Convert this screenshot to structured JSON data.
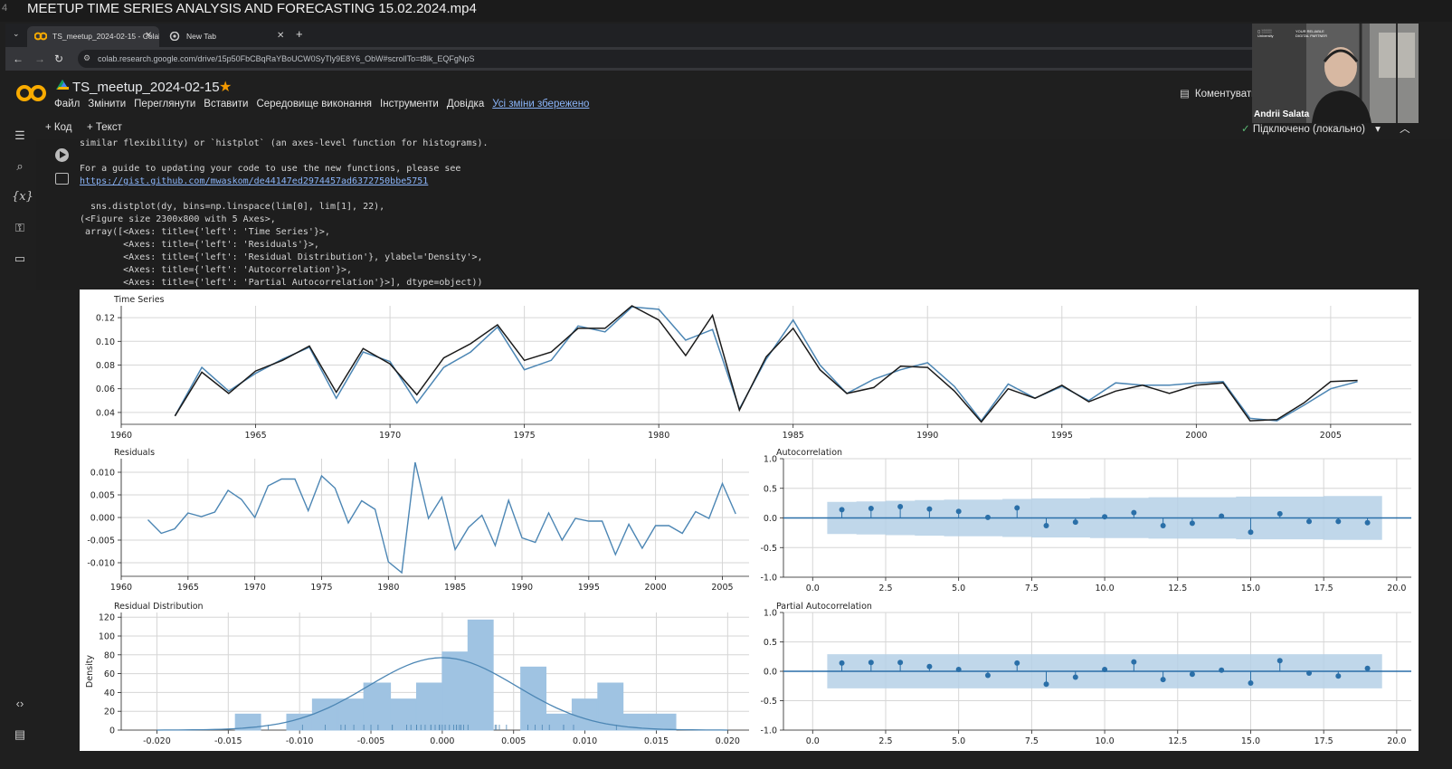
{
  "video": {
    "index": "4",
    "title": "MEETUP TIME SERIES ANALYSIS AND FORECASTING 15.02.2024.mp4"
  },
  "browser": {
    "tabs": [
      {
        "label": "TS_meetup_2024-02-15 - Colab"
      },
      {
        "label": "New Tab"
      }
    ],
    "new_tab": "+",
    "url": "colab.research.google.com/drive/15p50FbCBqRaYBoUCW0SyTly9E8Y6_ObW#scrollTo=t8lk_EQFgNpS"
  },
  "colab": {
    "notebook_title": "TS_meetup_2024-02-15",
    "menu": [
      "Файл",
      "Змінити",
      "Переглянути",
      "Вставити",
      "Середовище виконання",
      "Інструменти",
      "Довідка"
    ],
    "saved_status": "Усі зміни збережено",
    "comment_label": "Коментувати",
    "add_code": "+ Код",
    "add_text": "+ Текст",
    "connection": "Підключено (локально)"
  },
  "output_lines": [
    "similar flexibility) or `histplot` (an axes-level function for histograms).",
    "",
    "For a guide to updating your code to use the new functions, please see",
    "https://gist.github.com/mwaskom/de44147ed2974457ad6372750bbe5751",
    "",
    "  sns.distplot(dy, bins=np.linspace(lim[0], lim[1], 22),",
    "(<Figure size 2300x800 with 5 Axes>,",
    " array([<Axes: title={'left': 'Time Series'}>,",
    "        <Axes: title={'left': 'Residuals'}>,",
    "        <Axes: title={'left': 'Residual Distribution'}, ylabel='Density'>,",
    "        <Axes: title={'left': 'Autocorrelation'}>,",
    "        <Axes: title={'left': 'Partial Autocorrelation'}>], dtype=object))"
  ],
  "webcam": {
    "name": "Andrii Salata"
  },
  "colors": {
    "series_blue": "#4c86b4",
    "series_black": "#1a1a1a",
    "band": "#b5d0e6"
  },
  "chart_data": [
    {
      "type": "line",
      "title": "Time Series",
      "xlim": [
        1960,
        2008
      ],
      "ylim": [
        0.03,
        0.13
      ],
      "xticks": [
        "1960",
        "1965",
        "1970",
        "1975",
        "1980",
        "1985",
        "1990",
        "1995",
        "2000",
        "2005"
      ],
      "yticks": [
        "0.04",
        "0.06",
        "0.08",
        "0.10",
        "0.12"
      ],
      "x": [
        1962,
        1963,
        1964,
        1965,
        1966,
        1967,
        1968,
        1969,
        1970,
        1971,
        1972,
        1973,
        1974,
        1975,
        1976,
        1977,
        1978,
        1979,
        1980,
        1981,
        1982,
        1983,
        1984,
        1985,
        1986,
        1987,
        1988,
        1989,
        1990,
        1991,
        1992,
        1993,
        1994,
        1995,
        1996,
        1997,
        1998,
        1999,
        2000,
        2001,
        2002,
        2003,
        2004,
        2005,
        2006
      ],
      "series": [
        {
          "values": [
            0.037,
            0.078,
            0.058,
            0.073,
            0.085,
            0.095,
            0.052,
            0.091,
            0.083,
            0.048,
            0.078,
            0.091,
            0.112,
            0.076,
            0.084,
            0.113,
            0.108,
            0.129,
            0.127,
            0.101,
            0.11,
            0.043,
            0.085,
            0.118,
            0.08,
            0.056,
            0.068,
            0.076,
            0.082,
            0.062,
            0.033,
            0.064,
            0.052,
            0.062,
            0.05,
            0.065,
            0.063,
            0.063,
            0.065,
            0.066,
            0.035,
            0.033,
            0.046,
            0.06,
            0.066
          ]
        },
        {
          "values": [
            0.037,
            0.074,
            0.056,
            0.075,
            0.084,
            0.096,
            0.057,
            0.094,
            0.081,
            0.055,
            0.086,
            0.098,
            0.114,
            0.084,
            0.091,
            0.111,
            0.111,
            0.13,
            0.118,
            0.088,
            0.122,
            0.042,
            0.087,
            0.111,
            0.076,
            0.056,
            0.061,
            0.079,
            0.078,
            0.058,
            0.032,
            0.06,
            0.052,
            0.063,
            0.049,
            0.058,
            0.063,
            0.056,
            0.063,
            0.065,
            0.033,
            0.034,
            0.048,
            0.066,
            0.067
          ]
        }
      ]
    },
    {
      "type": "line",
      "title": "Residuals",
      "xlim": [
        1960,
        2007
      ],
      "ylim": [
        -0.013,
        0.013
      ],
      "xticks": [
        "1960",
        "1965",
        "1970",
        "1975",
        "1980",
        "1985",
        "1990",
        "1995",
        "2000",
        "2005"
      ],
      "yticks": [
        "-0.010",
        "-0.005",
        "0.000",
        "0.005",
        "0.010"
      ],
      "x": [
        1962,
        1963,
        1964,
        1965,
        1966,
        1967,
        1968,
        1969,
        1970,
        1971,
        1972,
        1973,
        1974,
        1975,
        1976,
        1977,
        1978,
        1979,
        1980,
        1981,
        1982,
        1983,
        1984,
        1985,
        1986,
        1987,
        1988,
        1989,
        1990,
        1991,
        1992,
        1993,
        1994,
        1995,
        1996,
        1997,
        1998,
        1999,
        2000,
        2001,
        2002,
        2003,
        2004,
        2005,
        2006
      ],
      "values": [
        -0.0005,
        -0.0035,
        -0.0025,
        0.001,
        0.0002,
        0.0012,
        0.006,
        0.004,
        0.0,
        0.007,
        0.0085,
        0.0085,
        0.0015,
        0.0092,
        0.0065,
        -0.0012,
        0.0037,
        0.0018,
        -0.0098,
        -0.0122,
        0.0122,
        -0.0002,
        0.0045,
        -0.0071,
        -0.0022,
        0.0005,
        -0.0062,
        0.0038,
        -0.0045,
        -0.0055,
        0.001,
        -0.005,
        -0.0002,
        -0.0008,
        -0.0008,
        -0.0082,
        -0.0015,
        -0.0068,
        -0.0018,
        -0.0018,
        -0.0035,
        0.0013,
        -0.0002,
        0.0075,
        0.0008
      ]
    },
    {
      "type": "bar",
      "title": "Residual Distribution",
      "ylabel": "Density",
      "xlim": [
        -0.0225,
        0.0215
      ],
      "ylim": [
        0,
        125
      ],
      "xticks": [
        "-0.020",
        "-0.015",
        "-0.010",
        "-0.005",
        "0.000",
        "0.005",
        "0.010",
        "0.015",
        "0.020"
      ],
      "yticks": [
        "0",
        "20",
        "40",
        "60",
        "80",
        "100",
        "120"
      ],
      "bin_edges": [
        -0.02,
        -0.0182,
        -0.0164,
        -0.0145,
        -0.0127,
        -0.0109,
        -0.0091,
        -0.0073,
        -0.0055,
        -0.0036,
        -0.0018,
        0.0,
        0.0018,
        0.0036,
        0.0055,
        0.0073,
        0.0091,
        0.0109,
        0.0127,
        0.0145,
        0.0164,
        0.0182,
        0.02
      ],
      "values": [
        0,
        0,
        0,
        17,
        0,
        17,
        33,
        33,
        50,
        33,
        50,
        83,
        117,
        0,
        67,
        17,
        33,
        50,
        17,
        17,
        0,
        0
      ],
      "kde_peak": 77,
      "kde_sd": 0.0052
    },
    {
      "type": "scatter",
      "title": "Autocorrelation",
      "xlim": [
        -1,
        20.5
      ],
      "ylim": [
        -1.0,
        1.0
      ],
      "xticks": [
        "0.0",
        "2.5",
        "5.0",
        "7.5",
        "10.0",
        "12.5",
        "15.0",
        "17.5",
        "20.0"
      ],
      "yticks": [
        "-1.0",
        "-0.5",
        "0.0",
        "0.5",
        "1.0"
      ],
      "lags": [
        1,
        2,
        3,
        4,
        5,
        6,
        7,
        8,
        9,
        10,
        11,
        12,
        13,
        14,
        15,
        16,
        17,
        18,
        19
      ],
      "values": [
        0.14,
        0.16,
        0.19,
        0.15,
        0.11,
        0.01,
        0.17,
        -0.13,
        -0.07,
        0.02,
        0.09,
        -0.13,
        -0.09,
        0.03,
        -0.24,
        0.07,
        -0.06,
        -0.06,
        -0.08
      ],
      "confidence_band": [
        0.27,
        0.28,
        0.29,
        0.3,
        0.31,
        0.31,
        0.32,
        0.33,
        0.33,
        0.34,
        0.34,
        0.35,
        0.35,
        0.35,
        0.36,
        0.36,
        0.36,
        0.37,
        0.37
      ]
    },
    {
      "type": "scatter",
      "title": "Partial Autocorrelation",
      "xlim": [
        -1,
        20.5
      ],
      "ylim": [
        -1.0,
        1.0
      ],
      "xticks": [
        "0.0",
        "2.5",
        "5.0",
        "7.5",
        "10.0",
        "12.5",
        "15.0",
        "17.5",
        "20.0"
      ],
      "yticks": [
        "-1.0",
        "-0.5",
        "0.0",
        "0.5",
        "1.0"
      ],
      "lags": [
        1,
        2,
        3,
        4,
        5,
        6,
        7,
        8,
        9,
        10,
        11,
        12,
        13,
        14,
        15,
        16,
        17,
        18,
        19
      ],
      "values": [
        0.14,
        0.15,
        0.15,
        0.08,
        0.03,
        -0.07,
        0.14,
        -0.22,
        -0.1,
        0.03,
        0.16,
        -0.14,
        -0.05,
        0.02,
        -0.2,
        0.18,
        -0.03,
        -0.08,
        0.05
      ],
      "confidence_band": [
        0.29,
        0.29,
        0.29,
        0.29,
        0.29,
        0.29,
        0.29,
        0.29,
        0.29,
        0.29,
        0.29,
        0.29,
        0.29,
        0.29,
        0.29,
        0.29,
        0.29,
        0.29,
        0.29
      ]
    }
  ]
}
